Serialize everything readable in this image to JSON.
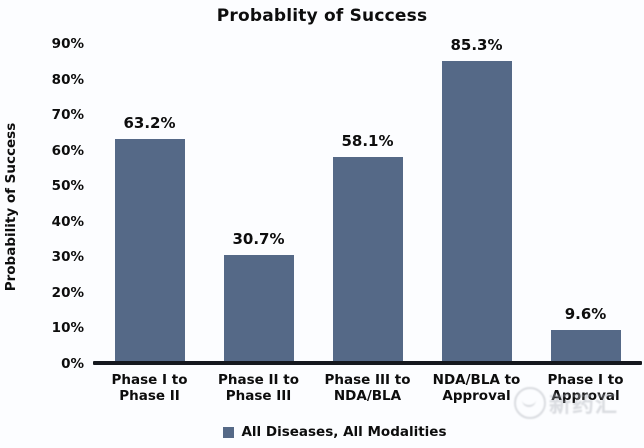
{
  "chart_data": {
    "type": "bar",
    "title": "Probablity of Success",
    "ylabel": "Probability of Success",
    "xlabel": "",
    "categories": [
      "Phase I to\nPhase II",
      "Phase II to\nPhase III",
      "Phase III to\nNDA/BLA",
      "NDA/BLA to\nApproval",
      "Phase I to\nApproval"
    ],
    "values": [
      63.2,
      30.7,
      58.1,
      85.3,
      9.6
    ],
    "value_labels": [
      "63.2%",
      "30.7%",
      "58.1%",
      "85.3%",
      "9.6%"
    ],
    "ylim": [
      0,
      90
    ],
    "ytick_step": 10,
    "ytick_labels": [
      "0%",
      "10%",
      "20%",
      "30%",
      "40%",
      "50%",
      "60%",
      "70%",
      "80%",
      "90%"
    ],
    "grid": false,
    "legend_position": "bottom",
    "series": [
      {
        "name": "All Diseases, All Modalities",
        "values": [
          63.2,
          30.7,
          58.1,
          85.3,
          9.6
        ]
      }
    ],
    "bar_color": "#556987",
    "axis_color": "#15181e",
    "text_color": "#0d0d0d",
    "background_color": "#fcfdff"
  },
  "legend": {
    "label": "All Diseases, All Modalities",
    "marker_color": "#556987"
  },
  "watermark": {
    "text": "新药汇",
    "color": "#aaaeb6"
  }
}
